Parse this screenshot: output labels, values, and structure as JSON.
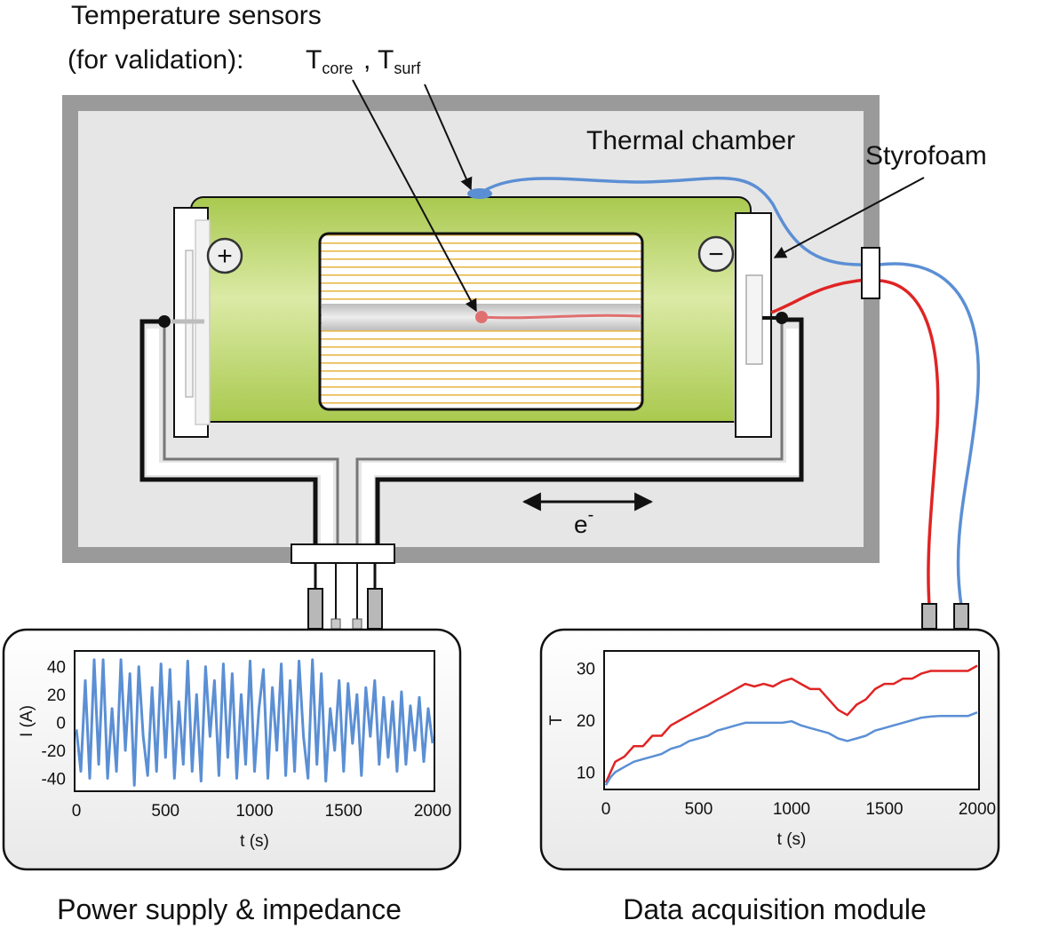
{
  "labels": {
    "sensors_line1": "Temperature sensors",
    "sensors_line2": "(for validation):",
    "t_core_main": "T",
    "t_core_sub": "core",
    "comma": ",",
    "t_surf_main": "T",
    "t_surf_sub": "surf",
    "chamber": "Thermal chamber",
    "styrofoam": "Styrofoam",
    "electron": "e",
    "electron_sup": "-",
    "plus_terminal": "+",
    "minus_terminal": "−",
    "power_supply": "Power supply & impedance",
    "daq": "Data acquisition module"
  },
  "colors": {
    "chamber_outer": "#9a9a9a",
    "chamber_inner": "#e6e6e6",
    "cell_green": "#c6dc80",
    "jelly_stripe": "#e8b84a",
    "core_wire": "#e07070",
    "surf_wire": "#5b8fd4",
    "daq_red": "#e02424",
    "daq_blue": "#5b8fd4",
    "current_line": "#5b8fd4"
  },
  "chart_data": [
    {
      "type": "line",
      "xlabel": "t (s)",
      "ylabel": "I (A)",
      "xlim": [
        0,
        2000
      ],
      "ylim": [
        -48,
        50
      ],
      "xticks": [
        0,
        500,
        1000,
        1500,
        2000
      ],
      "yticks": [
        40,
        20,
        0,
        -20,
        -40
      ],
      "grid": false,
      "series": [
        {
          "x": [
            0,
            25,
            50,
            75,
            100,
            125,
            150,
            175,
            200,
            225,
            250,
            275,
            300,
            325,
            350,
            375,
            400,
            425,
            450,
            475,
            500,
            525,
            550,
            575,
            600,
            625,
            650,
            675,
            700,
            725,
            750,
            775,
            800,
            825,
            850,
            875,
            900,
            925,
            950,
            975,
            1000,
            1025,
            1050,
            1075,
            1100,
            1125,
            1150,
            1175,
            1200,
            1225,
            1250,
            1275,
            1300,
            1325,
            1350,
            1375,
            1400,
            1425,
            1450,
            1475,
            1500,
            1525,
            1550,
            1575,
            1600,
            1625,
            1650,
            1675,
            1700,
            1725,
            1750,
            1775,
            1800,
            1825,
            1850,
            1875,
            1900,
            1925,
            1950,
            1975,
            2000
          ],
          "values": [
            -5,
            -35,
            30,
            -40,
            45,
            -30,
            45,
            -40,
            10,
            -35,
            45,
            -20,
            35,
            -45,
            40,
            -10,
            -38,
            25,
            -35,
            42,
            -25,
            38,
            -40,
            15,
            -30,
            44,
            -35,
            20,
            -42,
            40,
            -10,
            30,
            -38,
            42,
            -25,
            35,
            -40,
            20,
            -30,
            44,
            -35,
            10,
            38,
            -40,
            25,
            -20,
            42,
            -38,
            30,
            -35,
            44,
            -10,
            -40,
            45,
            -30,
            35,
            -42,
            10,
            -20,
            30,
            -35,
            28,
            -15,
            20,
            -38,
            25,
            -10,
            30,
            -30,
            18,
            -25,
            15,
            -35,
            22,
            -30,
            12,
            -20,
            18,
            -28,
            10,
            -15
          ]
        }
      ]
    },
    {
      "type": "line",
      "xlabel": "t (s)",
      "ylabel": "T",
      "xlim": [
        0,
        2000
      ],
      "ylim": [
        7,
        33
      ],
      "xticks": [
        0,
        500,
        1000,
        1500,
        2000
      ],
      "yticks": [
        30,
        20,
        10
      ],
      "grid": false,
      "series": [
        {
          "x": [
            0,
            25,
            50,
            100,
            150,
            200,
            250,
            300,
            350,
            400,
            450,
            500,
            550,
            600,
            650,
            700,
            750,
            800,
            850,
            900,
            950,
            1000,
            1050,
            1100,
            1150,
            1200,
            1250,
            1300,
            1350,
            1400,
            1450,
            1500,
            1550,
            1600,
            1650,
            1700,
            1750,
            1800,
            1850,
            1900,
            1950,
            2000
          ],
          "values": [
            8,
            10,
            12,
            13,
            15,
            15,
            17,
            17,
            19,
            20,
            21,
            22,
            23,
            24,
            25,
            26,
            27,
            26.5,
            27,
            26.5,
            27.5,
            28,
            27,
            26,
            26,
            24,
            22,
            21,
            23,
            24,
            26,
            27,
            27,
            28,
            28,
            29,
            29.5,
            29.5,
            29.5,
            29.5,
            29.5,
            30.5
          ]
        },
        {
          "x": [
            0,
            25,
            50,
            100,
            150,
            200,
            250,
            300,
            350,
            400,
            450,
            500,
            550,
            600,
            650,
            700,
            750,
            800,
            850,
            900,
            950,
            1000,
            1050,
            1100,
            1150,
            1200,
            1250,
            1300,
            1350,
            1400,
            1450,
            1500,
            1550,
            1600,
            1650,
            1700,
            1750,
            1800,
            1850,
            1900,
            1950,
            2000
          ],
          "values": [
            7.5,
            9,
            10,
            11,
            12,
            12.5,
            13,
            13.5,
            14.5,
            15,
            16,
            16.5,
            17,
            18,
            18.5,
            19,
            19.5,
            19.5,
            19.5,
            19.5,
            19.5,
            19.8,
            19,
            18.5,
            18,
            17.5,
            16.5,
            16,
            16.5,
            17,
            18,
            18.5,
            19,
            19.5,
            20,
            20.5,
            20.7,
            20.8,
            20.8,
            20.8,
            20.8,
            21.5
          ]
        }
      ]
    }
  ]
}
